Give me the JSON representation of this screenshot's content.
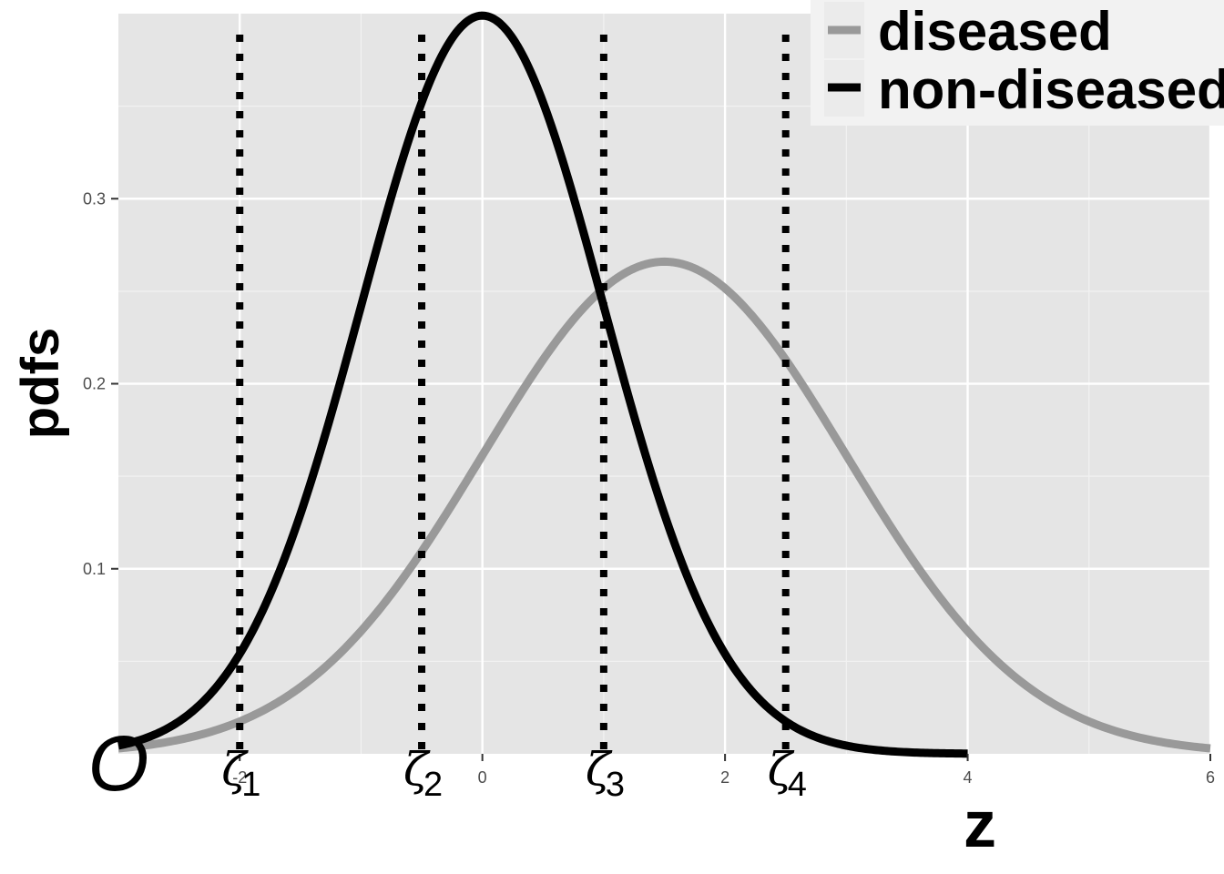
{
  "chart_data": {
    "type": "line",
    "xlabel": "z",
    "ylabel": "pdfs",
    "xlim": [
      -3,
      6
    ],
    "ylim": [
      0,
      0.4
    ],
    "x_ticks": [
      -2,
      0,
      2,
      4,
      6
    ],
    "x_tick_labels": [
      "-2",
      "0",
      "2",
      "4",
      "6"
    ],
    "y_ticks": [
      0.1,
      0.2,
      0.3
    ],
    "y_tick_labels": [
      "0.1",
      "0.2",
      "0.3"
    ],
    "grid": true,
    "legend_position": "top-right",
    "series": [
      {
        "name": "diseased",
        "color": "#999999",
        "distribution": "normal",
        "mean": 1.5,
        "sd": 1.5,
        "x_range": [
          -3,
          6
        ]
      },
      {
        "name": "non-diseased",
        "color": "#000000",
        "distribution": "normal",
        "mean": 0,
        "sd": 1,
        "x_range": [
          -3,
          4
        ]
      }
    ],
    "thresholds": [
      {
        "symbol": "ζ",
        "subscript": "1",
        "x": -2
      },
      {
        "symbol": "ζ",
        "subscript": "2",
        "x": -0.5
      },
      {
        "symbol": "ζ",
        "subscript": "3",
        "x": 1
      },
      {
        "symbol": "ζ",
        "subscript": "4",
        "x": 2.5
      }
    ],
    "annotations": [
      {
        "text": "O",
        "x": -3,
        "y": 0
      }
    ]
  }
}
